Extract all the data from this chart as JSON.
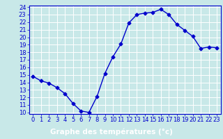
{
  "x": [
    0,
    1,
    2,
    3,
    4,
    5,
    6,
    7,
    8,
    9,
    10,
    11,
    12,
    13,
    14,
    15,
    16,
    17,
    18,
    19,
    20,
    21,
    22,
    23
  ],
  "y": [
    14.8,
    14.2,
    13.9,
    13.3,
    12.5,
    11.2,
    10.2,
    10.0,
    12.1,
    15.2,
    17.4,
    19.1,
    21.9,
    23.0,
    23.2,
    23.3,
    23.7,
    23.0,
    21.7,
    20.9,
    20.1,
    18.5,
    18.7,
    18.6
  ],
  "line_color": "#0000cc",
  "marker": "D",
  "marker_size": 2.5,
  "bg_color": "#c8e8e8",
  "grid_color": "#ffffff",
  "xlabel": "Graphe des températures (°c)",
  "xlabel_fontsize": 7.5,
  "xlabel_bg": "#0000aa",
  "xlabel_text_color": "#ffffff",
  "ylim": [
    10,
    24
  ],
  "xlim": [
    -0.5,
    23.5
  ],
  "yticks": [
    10,
    11,
    12,
    13,
    14,
    15,
    16,
    17,
    18,
    19,
    20,
    21,
    22,
    23,
    24
  ],
  "xticks": [
    0,
    1,
    2,
    3,
    4,
    5,
    6,
    7,
    8,
    9,
    10,
    11,
    12,
    13,
    14,
    15,
    16,
    17,
    18,
    19,
    20,
    21,
    22,
    23
  ],
  "tick_fontsize": 6,
  "tick_color": "#0000cc",
  "spine_color": "#0000cc",
  "linewidth": 1.0
}
